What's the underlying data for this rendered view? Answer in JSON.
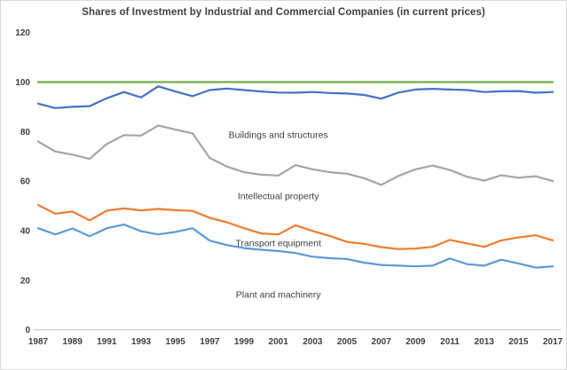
{
  "chart_data": {
    "type": "line",
    "title": "Shares of Investment by Industrial and Commercial Companies (in current prices)",
    "xlabel": "",
    "ylabel": "",
    "x": [
      1987,
      1988,
      1989,
      1990,
      1991,
      1992,
      1993,
      1994,
      1995,
      1996,
      1997,
      1998,
      1999,
      2000,
      2001,
      2002,
      2003,
      2004,
      2005,
      2006,
      2007,
      2008,
      2009,
      2010,
      2011,
      2012,
      2013,
      2014,
      2015,
      2016,
      2017
    ],
    "x_ticks": [
      1987,
      1989,
      1991,
      1993,
      1995,
      1997,
      1999,
      2001,
      2003,
      2005,
      2007,
      2009,
      2011,
      2013,
      2015,
      2017
    ],
    "y_ticks": [
      0,
      20,
      40,
      60,
      80,
      100,
      120
    ],
    "ylim": [
      0,
      120
    ],
    "grid": false,
    "legend_position": "none",
    "series": [
      {
        "name": "total-100-line",
        "color": "#70AD47",
        "values": [
          100,
          100,
          100,
          100,
          100,
          100,
          100,
          100,
          100,
          100,
          100,
          100,
          100,
          100,
          100,
          100,
          100,
          100,
          100,
          100,
          100,
          100,
          100,
          100,
          100,
          100,
          100,
          100,
          100,
          100,
          100
        ]
      },
      {
        "name": "cumulative-upper-blue-line",
        "color": "#4472C4",
        "values": [
          91.3,
          89.5,
          90,
          90.3,
          93.5,
          96,
          93.8,
          98.3,
          96.2,
          94.3,
          96.8,
          97.4,
          96.8,
          96.2,
          95.8,
          95.7,
          96,
          95.6,
          95.4,
          94.8,
          93.3,
          95.8,
          97,
          97.3,
          97,
          96.8,
          96,
          96.3,
          96.4,
          95.7,
          96
        ]
      },
      {
        "name": "cumulative-gray-line",
        "color": "#A5A5A5",
        "values": [
          76,
          72,
          70.7,
          69,
          75,
          78.6,
          78.4,
          82.5,
          80.8,
          79.3,
          69.4,
          65.9,
          63.6,
          62.6,
          62.3,
          66.5,
          64.8,
          63.6,
          63,
          61.2,
          58.5,
          62.1,
          64.8,
          66.3,
          64.5,
          61.8,
          60.2,
          62.4,
          61.4,
          62,
          60
        ]
      },
      {
        "name": "cumulative-orange-line",
        "color": "#ED7D31",
        "values": [
          50.4,
          46.9,
          47.7,
          44.2,
          48.1,
          49,
          48.2,
          48.8,
          48.3,
          48,
          45.2,
          43.4,
          41,
          38.9,
          38.5,
          42.2,
          39.9,
          37.9,
          35.5,
          34.7,
          33.4,
          32.6,
          32.8,
          33.5,
          36.3,
          34.9,
          33.5,
          36.1,
          37.3,
          38.2,
          36.1
        ]
      },
      {
        "name": "cumulative-light-blue-line",
        "color": "#5B9BD5",
        "values": [
          41,
          38.5,
          40.9,
          37.8,
          41,
          42.5,
          39.8,
          38.5,
          39.5,
          41,
          36,
          34.2,
          33,
          32.3,
          31.8,
          31,
          29.5,
          28.9,
          28.6,
          27.1,
          26.2,
          25.9,
          25.6,
          25.9,
          28.8,
          26.5,
          25.9,
          28.3,
          26.8,
          25.1,
          25.6
        ]
      }
    ],
    "band_labels": [
      {
        "text": "Buildings and structures",
        "year": 2001,
        "value": 78.7
      },
      {
        "text": "Intellectual property",
        "year": 2001,
        "value": 54.0
      },
      {
        "text": "Transport equipment",
        "year": 2001,
        "value": 35.0
      },
      {
        "text": "Plant and machinery",
        "year": 2001,
        "value": 14.2
      }
    ],
    "axis_color": "#BFBFBF",
    "tick_label_color": "#404040",
    "title_color": "#404040"
  }
}
